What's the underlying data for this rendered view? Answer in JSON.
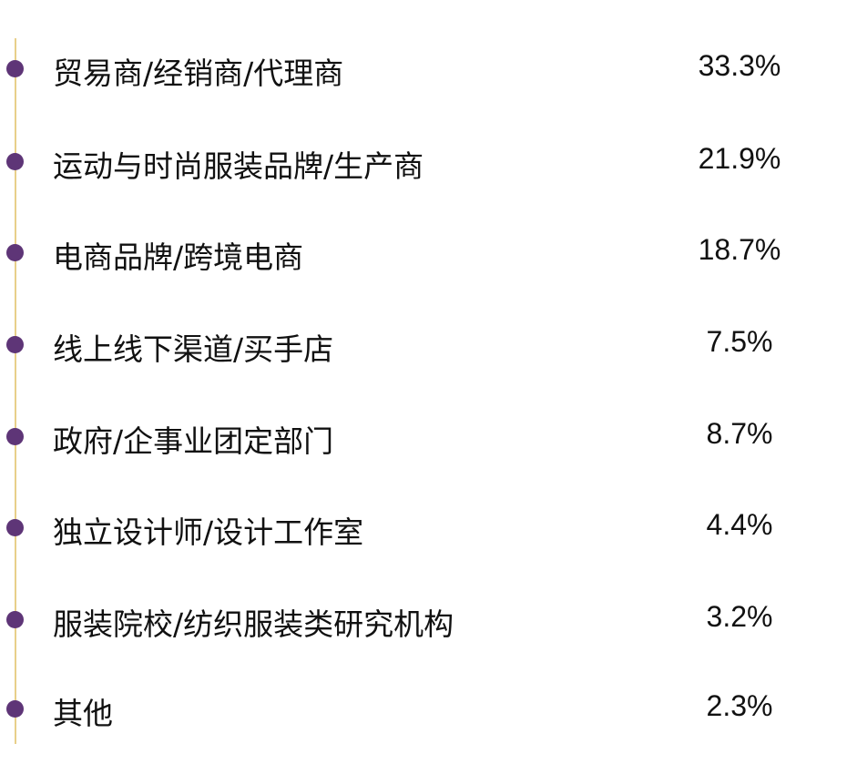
{
  "colors": {
    "bullet": "#5e3577",
    "line": "#e8cf8a"
  },
  "items": [
    {
      "label": "贸易商/经销商/代理商",
      "value": "33.3%"
    },
    {
      "label": "运动与时尚服装品牌/生产商",
      "value": "21.9%"
    },
    {
      "label": "电商品牌/跨境电商",
      "value": "18.7%"
    },
    {
      "label": "线上线下渠道/买手店",
      "value": "7.5%"
    },
    {
      "label": "政府/企事业团定部门",
      "value": "8.7%"
    },
    {
      "label": "独立设计师/设计工作室",
      "value": "4.4%"
    },
    {
      "label": "服装院校/纺织服装类研究机构",
      "value": "3.2%"
    },
    {
      "label": "其他",
      "value": "2.3%"
    }
  ]
}
